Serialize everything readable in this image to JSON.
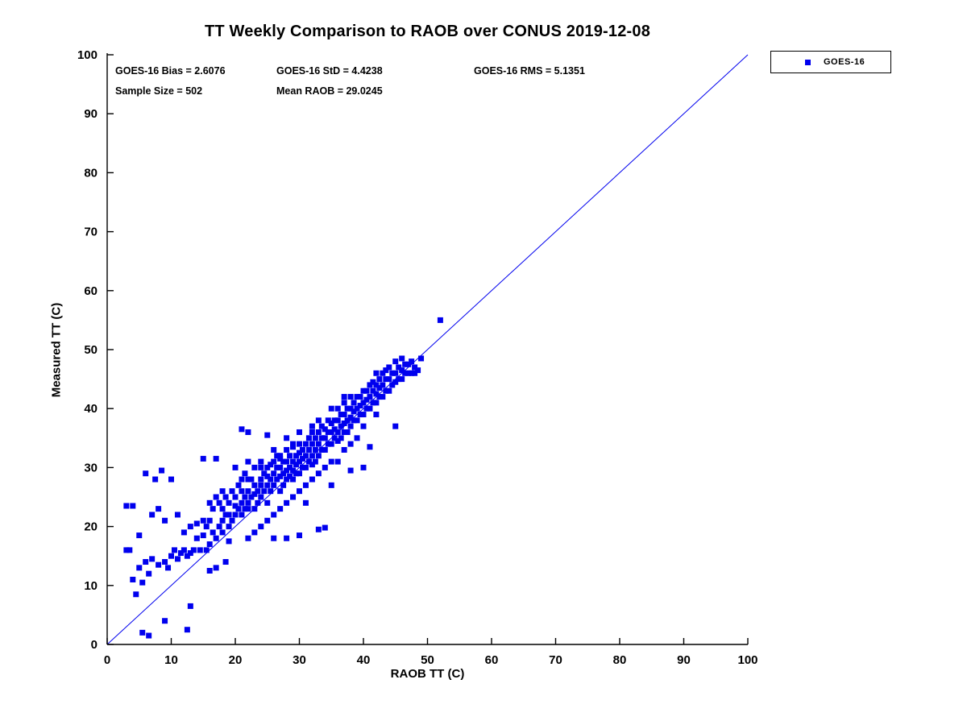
{
  "chart_data": {
    "type": "scatter",
    "title": "TT Weekly Comparison to RAOB over CONUS 2019-12-08",
    "xlabel": "RAOB TT (C)",
    "ylabel": "Measured TT (C)",
    "xlim": [
      0,
      100
    ],
    "ylim": [
      0,
      100
    ],
    "xticks": [
      0,
      10,
      20,
      30,
      40,
      50,
      60,
      70,
      80,
      90,
      100
    ],
    "yticks": [
      0,
      10,
      20,
      30,
      40,
      50,
      60,
      70,
      80,
      90,
      100
    ],
    "grid": false,
    "marker": "square",
    "marker_color": "#0000ee",
    "reference_line": {
      "from": [
        0,
        0
      ],
      "to": [
        100,
        100
      ],
      "color": "#0000ee"
    },
    "legend": {
      "position": "top-right-outside",
      "entries": [
        {
          "label": "GOES-16",
          "marker": "square",
          "color": "#0000ee"
        }
      ]
    },
    "annotations": {
      "bias": "GOES-16 Bias = 2.6076",
      "std": "GOES-16 StD = 4.4238",
      "rms": "GOES-16 RMS = 5.1351",
      "sample_size": "Sample Size = 502",
      "mean_raob": "Mean RAOB = 29.0245"
    },
    "series": [
      {
        "name": "GOES-16",
        "points": [
          [
            3,
            16
          ],
          [
            3,
            23.5
          ],
          [
            3.5,
            16
          ],
          [
            4,
            23.5
          ],
          [
            4,
            11
          ],
          [
            4.5,
            8.5
          ],
          [
            5,
            13
          ],
          [
            5,
            18.5
          ],
          [
            5.5,
            2
          ],
          [
            5.5,
            10.5
          ],
          [
            6,
            14
          ],
          [
            6,
            29
          ],
          [
            6.5,
            1.5
          ],
          [
            6.5,
            12
          ],
          [
            7,
            14.5
          ],
          [
            7,
            22
          ],
          [
            7.5,
            28
          ],
          [
            8,
            13.5
          ],
          [
            8,
            23
          ],
          [
            8.5,
            29.5
          ],
          [
            9,
            4
          ],
          [
            9,
            14
          ],
          [
            9,
            21
          ],
          [
            9.5,
            13
          ],
          [
            10,
            15
          ],
          [
            10,
            28
          ],
          [
            10.5,
            16
          ],
          [
            11,
            14.5
          ],
          [
            11,
            22
          ],
          [
            11.5,
            15.5
          ],
          [
            12,
            16
          ],
          [
            12,
            19
          ],
          [
            12.5,
            2.5
          ],
          [
            12.5,
            15
          ],
          [
            13,
            6.5
          ],
          [
            13,
            15.5
          ],
          [
            13,
            20
          ],
          [
            13.5,
            16
          ],
          [
            14,
            18
          ],
          [
            14,
            20.5
          ],
          [
            14.5,
            16
          ],
          [
            15,
            18.5
          ],
          [
            15,
            21
          ],
          [
            15,
            31.5
          ],
          [
            15.5,
            16
          ],
          [
            15.5,
            20
          ],
          [
            16,
            12.5
          ],
          [
            16,
            17
          ],
          [
            16,
            21
          ],
          [
            16,
            24
          ],
          [
            16.5,
            19
          ],
          [
            16.5,
            23
          ],
          [
            17,
            13
          ],
          [
            17,
            18
          ],
          [
            17,
            25
          ],
          [
            17,
            31.5
          ],
          [
            17.5,
            20
          ],
          [
            17.5,
            24
          ],
          [
            18,
            19
          ],
          [
            18,
            21
          ],
          [
            18,
            23
          ],
          [
            18,
            26
          ],
          [
            18.5,
            14
          ],
          [
            18.5,
            22
          ],
          [
            18.5,
            25
          ],
          [
            19,
            17.5
          ],
          [
            19,
            20
          ],
          [
            19,
            22
          ],
          [
            19,
            24
          ],
          [
            19.5,
            21
          ],
          [
            19.5,
            26
          ],
          [
            20,
            22
          ],
          [
            20,
            23.5
          ],
          [
            20,
            25
          ],
          [
            20,
            30
          ],
          [
            20.5,
            23
          ],
          [
            20.5,
            27
          ],
          [
            21,
            22
          ],
          [
            21,
            24
          ],
          [
            21,
            26
          ],
          [
            21,
            28
          ],
          [
            21,
            36.5
          ],
          [
            21.5,
            23
          ],
          [
            21.5,
            25
          ],
          [
            21.5,
            29
          ],
          [
            22,
            18
          ],
          [
            22,
            23
          ],
          [
            22,
            24
          ],
          [
            22,
            26
          ],
          [
            22,
            28
          ],
          [
            22,
            31
          ],
          [
            22,
            36
          ],
          [
            22.5,
            25
          ],
          [
            22.5,
            28
          ],
          [
            23,
            19
          ],
          [
            23,
            23
          ],
          [
            23,
            25.5
          ],
          [
            23,
            27
          ],
          [
            23,
            30
          ],
          [
            23.5,
            24
          ],
          [
            23.5,
            26
          ],
          [
            24,
            20
          ],
          [
            24,
            25
          ],
          [
            24,
            27
          ],
          [
            24,
            28
          ],
          [
            24,
            30
          ],
          [
            24,
            31
          ],
          [
            24.5,
            26
          ],
          [
            24.5,
            29
          ],
          [
            25,
            21
          ],
          [
            25,
            24
          ],
          [
            25,
            27
          ],
          [
            25,
            28.5
          ],
          [
            25,
            30
          ],
          [
            25,
            35.5
          ],
          [
            25.5,
            26
          ],
          [
            25.5,
            28
          ],
          [
            25.5,
            30.5
          ],
          [
            26,
            18
          ],
          [
            26,
            22
          ],
          [
            26,
            27
          ],
          [
            26,
            29
          ],
          [
            26,
            31
          ],
          [
            26,
            33
          ],
          [
            26.5,
            28
          ],
          [
            26.5,
            30
          ],
          [
            26.5,
            32
          ],
          [
            27,
            23
          ],
          [
            27,
            26
          ],
          [
            27,
            28.5
          ],
          [
            27,
            30
          ],
          [
            27,
            31.5
          ],
          [
            27,
            32
          ],
          [
            27.5,
            27
          ],
          [
            27.5,
            29
          ],
          [
            27.5,
            31
          ],
          [
            28,
            18
          ],
          [
            28,
            24
          ],
          [
            28,
            28
          ],
          [
            28,
            29.5
          ],
          [
            28,
            31
          ],
          [
            28,
            33
          ],
          [
            28,
            35
          ],
          [
            28.5,
            28.5
          ],
          [
            28.5,
            30
          ],
          [
            28.5,
            32
          ],
          [
            29,
            25
          ],
          [
            29,
            28
          ],
          [
            29,
            29.5
          ],
          [
            29,
            31
          ],
          [
            29,
            33.5
          ],
          [
            29,
            34
          ],
          [
            29.5,
            29
          ],
          [
            29.5,
            30.5
          ],
          [
            29.5,
            32
          ],
          [
            30,
            18.5
          ],
          [
            30,
            26
          ],
          [
            30,
            29
          ],
          [
            30,
            31
          ],
          [
            30,
            32.5
          ],
          [
            30,
            34
          ],
          [
            30,
            36
          ],
          [
            30.5,
            30
          ],
          [
            30.5,
            31.5
          ],
          [
            30.5,
            33
          ],
          [
            31,
            24
          ],
          [
            31,
            27
          ],
          [
            31,
            30
          ],
          [
            31,
            32
          ],
          [
            31,
            34
          ],
          [
            31.5,
            31
          ],
          [
            31.5,
            33
          ],
          [
            31.5,
            35
          ],
          [
            32,
            28
          ],
          [
            32,
            30.5
          ],
          [
            32,
            32
          ],
          [
            32,
            34
          ],
          [
            32,
            36
          ],
          [
            32,
            37
          ],
          [
            32.5,
            31
          ],
          [
            32.5,
            33
          ],
          [
            32.5,
            35
          ],
          [
            33,
            19.5
          ],
          [
            33,
            29
          ],
          [
            33,
            32
          ],
          [
            33,
            34
          ],
          [
            33,
            36
          ],
          [
            33,
            38
          ],
          [
            33.5,
            33
          ],
          [
            33.5,
            35
          ],
          [
            33.5,
            37
          ],
          [
            34,
            19.8
          ],
          [
            34,
            30
          ],
          [
            34,
            33
          ],
          [
            34,
            35
          ],
          [
            34,
            36.5
          ],
          [
            34.5,
            34
          ],
          [
            34.5,
            36
          ],
          [
            34.5,
            38
          ],
          [
            35,
            27
          ],
          [
            35,
            31
          ],
          [
            35,
            34
          ],
          [
            35,
            36
          ],
          [
            35,
            37.5
          ],
          [
            35,
            40
          ],
          [
            35.5,
            35
          ],
          [
            35.5,
            36.5
          ],
          [
            35.5,
            38
          ],
          [
            36,
            31
          ],
          [
            36,
            34.5
          ],
          [
            36,
            36
          ],
          [
            36,
            38
          ],
          [
            36,
            40
          ],
          [
            36.5,
            35
          ],
          [
            36.5,
            37
          ],
          [
            36.5,
            39
          ],
          [
            37,
            33
          ],
          [
            37,
            36
          ],
          [
            37,
            37.5
          ],
          [
            37,
            39
          ],
          [
            37,
            41
          ],
          [
            37,
            42
          ],
          [
            37.5,
            36
          ],
          [
            37.5,
            38
          ],
          [
            37.5,
            40
          ],
          [
            38,
            29.5
          ],
          [
            38,
            34
          ],
          [
            38,
            37
          ],
          [
            38,
            38.5
          ],
          [
            38,
            40
          ],
          [
            38,
            42
          ],
          [
            38.5,
            38
          ],
          [
            38.5,
            39.5
          ],
          [
            38.5,
            41
          ],
          [
            39,
            35
          ],
          [
            39,
            38
          ],
          [
            39,
            40
          ],
          [
            39,
            42
          ],
          [
            39.5,
            39
          ],
          [
            39.5,
            40.5
          ],
          [
            39.5,
            42
          ],
          [
            40,
            30
          ],
          [
            40,
            37
          ],
          [
            40,
            39
          ],
          [
            40,
            41
          ],
          [
            40,
            43
          ],
          [
            40.5,
            40
          ],
          [
            40.5,
            41.5
          ],
          [
            40.5,
            43
          ],
          [
            41,
            33.5
          ],
          [
            41,
            40
          ],
          [
            41,
            42
          ],
          [
            41,
            44
          ],
          [
            41.5,
            41
          ],
          [
            41.5,
            43
          ],
          [
            41.5,
            44.5
          ],
          [
            42,
            39
          ],
          [
            42,
            41
          ],
          [
            42,
            42.5
          ],
          [
            42,
            44
          ],
          [
            42,
            46
          ],
          [
            42.5,
            42
          ],
          [
            42.5,
            43.5
          ],
          [
            42.5,
            45
          ],
          [
            43,
            42
          ],
          [
            43,
            44
          ],
          [
            43,
            46
          ],
          [
            43.5,
            43
          ],
          [
            43.5,
            45
          ],
          [
            43.5,
            46.5
          ],
          [
            44,
            43
          ],
          [
            44,
            45
          ],
          [
            44,
            47
          ],
          [
            44.5,
            44
          ],
          [
            44.5,
            46
          ],
          [
            45,
            37
          ],
          [
            45,
            44.5
          ],
          [
            45,
            46
          ],
          [
            45,
            48
          ],
          [
            45.5,
            45
          ],
          [
            45.5,
            47
          ],
          [
            46,
            45
          ],
          [
            46,
            46.5
          ],
          [
            46,
            48.5
          ],
          [
            46.5,
            46
          ],
          [
            46.5,
            47.5
          ],
          [
            47,
            46
          ],
          [
            47,
            47.5
          ],
          [
            47.5,
            46
          ],
          [
            47.5,
            48
          ],
          [
            48,
            46
          ],
          [
            48,
            47
          ],
          [
            48.5,
            46.5
          ],
          [
            49,
            48.5
          ],
          [
            52,
            55
          ]
        ]
      }
    ]
  }
}
